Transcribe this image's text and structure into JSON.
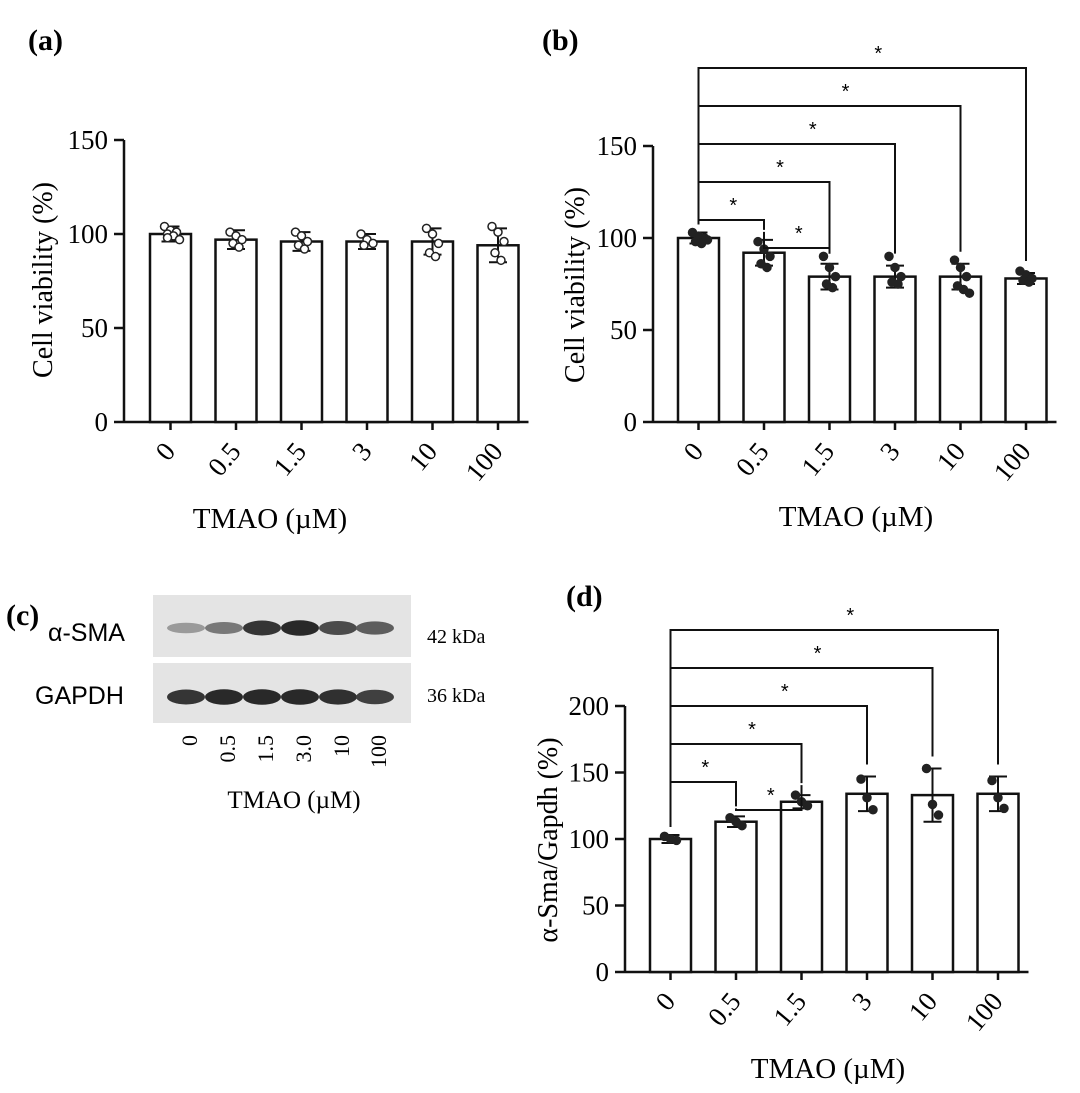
{
  "chart_data": [
    {
      "panel": "(a)",
      "type": "bar",
      "categories": [
        "0",
        "0.5",
        "1.5",
        "3",
        "10",
        "100"
      ],
      "values": [
        100,
        97,
        96,
        96,
        96,
        94
      ],
      "errors": [
        4,
        5,
        5,
        4,
        7,
        9
      ],
      "points": [
        [
          104,
          102,
          101,
          100,
          99,
          97,
          98
        ],
        [
          101,
          99,
          97,
          95,
          93
        ],
        [
          101,
          99,
          96,
          94,
          92
        ],
        [
          100,
          97,
          95,
          94
        ],
        [
          103,
          100,
          95,
          90,
          88
        ],
        [
          104,
          101,
          96,
          90,
          86
        ]
      ],
      "xlabel": "TMAO (µM)",
      "ylabel": "Cell viability (%)",
      "ylim": [
        0,
        150
      ],
      "yticks": [
        "0",
        "50",
        "100",
        "150"
      ],
      "brackets": []
    },
    {
      "panel": "(b)",
      "type": "bar",
      "categories": [
        "0",
        "0.5",
        "1.5",
        "3",
        "10",
        "100"
      ],
      "values": [
        100,
        92,
        79,
        79,
        79,
        78
      ],
      "errors": [
        3,
        7,
        7,
        6,
        7,
        3
      ],
      "points": [
        [
          103,
          101,
          100,
          98,
          97,
          99
        ],
        [
          98,
          94,
          90,
          86,
          84
        ],
        [
          90,
          84,
          79,
          75,
          73
        ],
        [
          90,
          84,
          79,
          76,
          75
        ],
        [
          88,
          84,
          79,
          74,
          72,
          70
        ],
        [
          82,
          80,
          78,
          77,
          76
        ]
      ],
      "xlabel": "TMAO (µM)",
      "ylabel": "Cell viability (%)",
      "ylim": [
        0,
        150
      ],
      "yticks": [
        "0",
        "50",
        "100",
        "150"
      ],
      "brackets": [
        {
          "from": "0",
          "to": "0.5",
          "label": "*"
        },
        {
          "from": "0.5",
          "to": "1.5",
          "label": "*"
        },
        {
          "from": "0",
          "to": "1.5",
          "label": "*"
        },
        {
          "from": "0",
          "to": "3",
          "label": "*"
        },
        {
          "from": "0",
          "to": "10",
          "label": "*"
        },
        {
          "from": "0",
          "to": "100",
          "label": "*"
        }
      ]
    },
    {
      "panel": "(d)",
      "type": "bar",
      "categories": [
        "0",
        "0.5",
        "1.5",
        "3",
        "10",
        "100"
      ],
      "values": [
        100,
        113,
        128,
        134,
        133,
        134
      ],
      "errors": [
        3,
        4,
        5,
        13,
        20,
        13
      ],
      "points": [
        [
          102,
          100,
          99
        ],
        [
          116,
          113,
          110
        ],
        [
          133,
          128,
          125
        ],
        [
          145,
          131,
          122
        ],
        [
          153,
          126,
          118
        ],
        [
          144,
          131,
          123
        ]
      ],
      "xlabel": "TMAO (µM)",
      "ylabel": "α-Sma/Gapdh (%)",
      "ylim": [
        0,
        200
      ],
      "yticks": [
        "0",
        "50",
        "100",
        "150",
        "200"
      ],
      "brackets": [
        {
          "from": "0",
          "to": "0.5",
          "label": "*"
        },
        {
          "from": "0.5",
          "to": "1.5",
          "label": "*"
        },
        {
          "from": "0",
          "to": "1.5",
          "label": "*"
        },
        {
          "from": "0",
          "to": "3",
          "label": "*"
        },
        {
          "from": "0",
          "to": "10",
          "label": "*"
        },
        {
          "from": "0",
          "to": "100",
          "label": "*"
        }
      ]
    }
  ],
  "blot": {
    "panel": "(c)",
    "rows": [
      {
        "protein": "α-SMA",
        "size": "42 kDa",
        "intensities": [
          0.45,
          0.6,
          0.9,
          0.95,
          0.8,
          0.72
        ]
      },
      {
        "protein": "GAPDH",
        "size": "36 kDa",
        "intensities": [
          0.9,
          0.95,
          0.95,
          0.95,
          0.92,
          0.85
        ]
      }
    ],
    "lanes": [
      "0",
      "0.5",
      "1.5",
      "3.0",
      "10",
      "100"
    ],
    "xlabel": "TMAO (µM)"
  }
}
